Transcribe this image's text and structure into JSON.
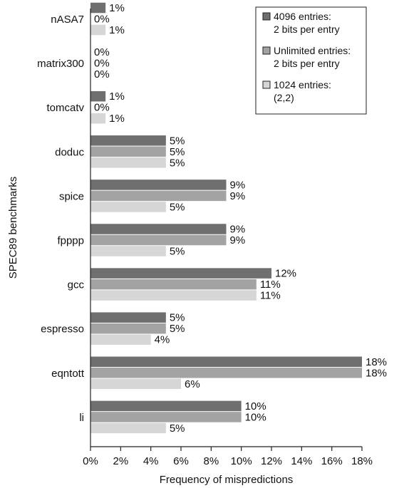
{
  "chart_data": {
    "type": "bar",
    "orientation": "horizontal",
    "xlabel": "Frequency of mispredictions",
    "ylabel": "SPEC89 benchmarks",
    "xlim": [
      0,
      18
    ],
    "x_ticks": [
      "0%",
      "2%",
      "4%",
      "6%",
      "8%",
      "10%",
      "12%",
      "14%",
      "16%",
      "18%"
    ],
    "categories": [
      "nASA7",
      "matrix300",
      "tomcatv",
      "doduc",
      "spice",
      "fpppp",
      "gcc",
      "espresso",
      "eqntott",
      "li"
    ],
    "series": [
      {
        "name": "4096 entries: 2 bits per entry",
        "legend_lines": [
          "4096 entries:",
          "2 bits per entry"
        ],
        "color": "#6f6f6f",
        "values": [
          1,
          0,
          1,
          5,
          9,
          9,
          12,
          5,
          18,
          10
        ],
        "labels": [
          "1%",
          "0%",
          "1%",
          "5%",
          "9%",
          "9%",
          "12%",
          "5%",
          "18%",
          "10%"
        ]
      },
      {
        "name": "Unlimited entries: 2 bits per entry",
        "legend_lines": [
          "Unlimited entries:",
          "2 bits per entry"
        ],
        "color": "#a3a3a3",
        "values": [
          0,
          0,
          0,
          5,
          9,
          9,
          11,
          5,
          18,
          10
        ],
        "labels": [
          "0%",
          "0%",
          "0%",
          "5%",
          "9%",
          "9%",
          "11%",
          "5%",
          "18%",
          "10%"
        ]
      },
      {
        "name": "1024 entries: (2,2)",
        "legend_lines": [
          "1024 entries:",
          "(2,2)"
        ],
        "color": "#d6d6d6",
        "values": [
          1,
          0,
          1,
          5,
          5,
          5,
          11,
          4,
          6,
          5
        ],
        "labels": [
          "1%",
          "0%",
          "1%",
          "5%",
          "5%",
          "5%",
          "11%",
          "4%",
          "6%",
          "5%"
        ]
      }
    ],
    "legend_position": "top-right",
    "grid": false
  }
}
